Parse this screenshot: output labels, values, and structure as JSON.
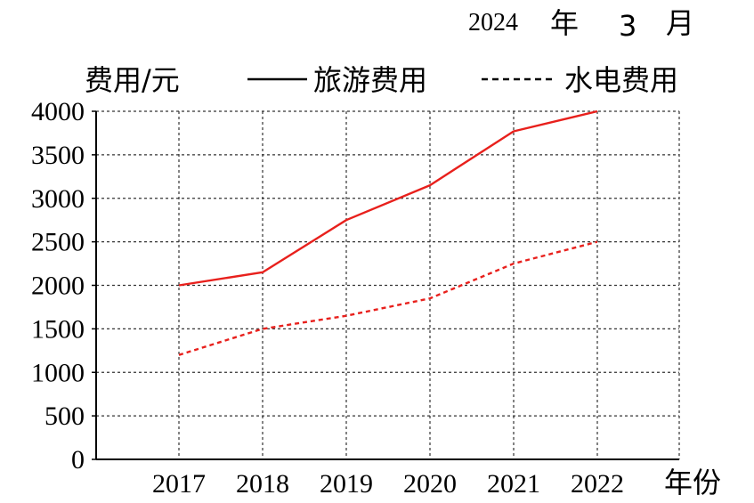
{
  "header": {
    "year": "2024",
    "year_unit": "年",
    "month": "3",
    "month_unit": "月"
  },
  "chart_data": {
    "type": "line",
    "ylabel": "费用/元",
    "xlabel": "年份",
    "categories": [
      "2017",
      "2018",
      "2019",
      "2020",
      "2021",
      "2022"
    ],
    "ylim": [
      0,
      4000
    ],
    "yticks": [
      "0",
      "500",
      "1000",
      "1500",
      "2000",
      "2500",
      "3000",
      "3500",
      "4000"
    ],
    "grid": true,
    "legend_position": "top",
    "series": [
      {
        "name": "旅游费用",
        "style": "solid",
        "color": "#e8201c",
        "values": [
          2000,
          2150,
          2750,
          3150,
          3770,
          4000
        ]
      },
      {
        "name": "水电费用",
        "style": "dashed",
        "color": "#e8201c",
        "values": [
          1200,
          1500,
          1650,
          1850,
          2250,
          2500
        ]
      }
    ]
  }
}
